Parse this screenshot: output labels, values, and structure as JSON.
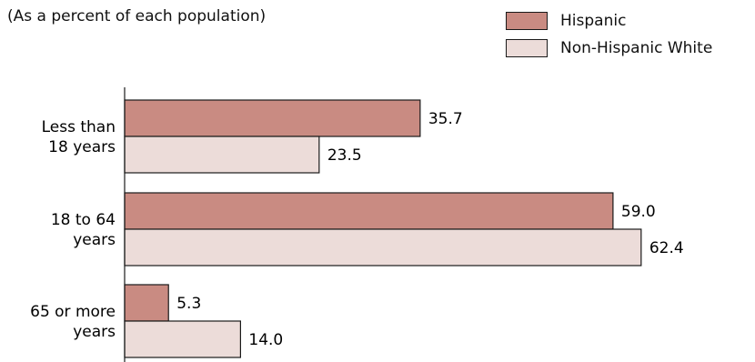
{
  "chart_data": {
    "type": "bar",
    "orientation": "horizontal",
    "subtitle": "(As a percent of each population)",
    "categories": [
      [
        "Less than",
        "18 years"
      ],
      [
        "18 to 64",
        "years"
      ],
      [
        "65 or more",
        "years"
      ]
    ],
    "series": [
      {
        "name": "Hispanic",
        "color": "#c98b82",
        "values": [
          35.7,
          59.0,
          5.3
        ],
        "labels": [
          "35.7",
          "59.0",
          "5.3"
        ]
      },
      {
        "name": "Non-Hispanic White",
        "color": "#ecdcd9",
        "values": [
          23.5,
          62.4,
          14.0
        ],
        "labels": [
          "23.5",
          "62.4",
          "14.0"
        ]
      }
    ],
    "xlim": [
      0,
      65
    ],
    "grid": false,
    "legend_position": "top-right"
  }
}
